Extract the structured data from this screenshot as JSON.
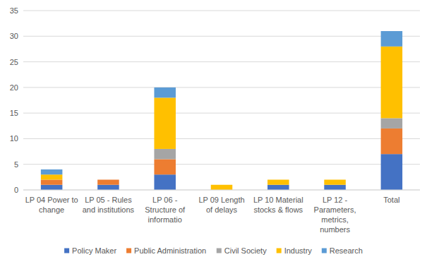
{
  "chart_data": {
    "type": "bar",
    "stacked": true,
    "grid": true,
    "legend": "bottom",
    "categories": [
      "LP 04 Power to change",
      "LP 05 - Rules and institutions",
      "LP 06 - Structure of informatio",
      "LP 09 Length of delays",
      "LP 10 Material stocks & flows",
      "LP 12 - Parameters, metrics, numbers",
      "Total"
    ],
    "series": [
      {
        "name": "Policy Maker",
        "color": "#4472c4",
        "values": [
          1,
          1,
          3,
          0,
          1,
          1,
          7
        ]
      },
      {
        "name": "Public Administration",
        "color": "#ed7d31",
        "values": [
          1,
          1,
          3,
          0,
          0,
          0,
          5
        ]
      },
      {
        "name": "Civil Society",
        "color": "#a5a5a5",
        "values": [
          0,
          0,
          2,
          0,
          0,
          0,
          2
        ]
      },
      {
        "name": "Industry",
        "color": "#ffc000",
        "values": [
          1,
          0,
          10,
          1,
          1,
          1,
          14
        ]
      },
      {
        "name": "Research",
        "color": "#5b9bd5",
        "values": [
          1,
          0,
          2,
          0,
          0,
          0,
          3
        ]
      }
    ],
    "ylim": [
      0,
      35
    ],
    "yticks": [
      0,
      5,
      10,
      15,
      20,
      25,
      30,
      35
    ]
  }
}
